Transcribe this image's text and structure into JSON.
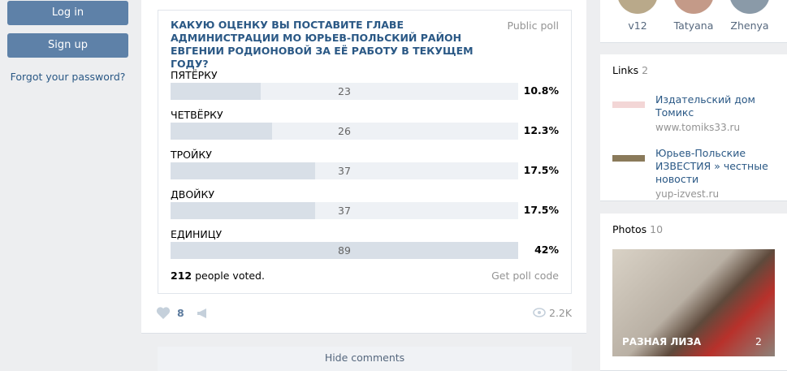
{
  "auth": {
    "login": "Log in",
    "signup": "Sign up",
    "forgot": "Forgot your password?"
  },
  "poll": {
    "question": "КАКУЮ ОЦЕНКУ ВЫ ПОСТАВИТЕ ГЛАВЕ АДМИНИСТРАЦИИ МО ЮРЬЕВ-ПОЛЬСКИЙ РАЙОН ЕВГЕНИИ РОДИОНОВОЙ ЗА ЕЁ РАБОТУ В ТЕКУЩЕМ ГОДУ?",
    "kind": "Public poll",
    "options": [
      {
        "label": "ПЯТЁРКУ",
        "votes": 23,
        "percent": "10.8%"
      },
      {
        "label": "ЧЕТВЁРКУ",
        "votes": 26,
        "percent": "12.3%"
      },
      {
        "label": "ТРОЙКУ",
        "votes": 37,
        "percent": "17.5%"
      },
      {
        "label": "ДВОЙКУ",
        "votes": 37,
        "percent": "17.5%"
      },
      {
        "label": "ЕДИНИЦУ",
        "votes": 89,
        "percent": "42%"
      }
    ],
    "total": 212,
    "voted_text": "people voted.",
    "code": "Get poll code"
  },
  "post": {
    "likes": 8,
    "views": "2.2K",
    "hide": "Hide comments"
  },
  "friends": [
    "v12",
    "Tatyana",
    "Zhenya"
  ],
  "links": {
    "title": "Links",
    "count": 2,
    "items": [
      {
        "title": "Издательский дом Томикс",
        "url": "www.tomiks33.ru"
      },
      {
        "title": "Юрьев-Польские ИЗВЕСТИЯ » честные новости",
        "url": "yup-izvest.ru"
      }
    ]
  },
  "photos": {
    "title": "Photos",
    "count": 10,
    "album": "РАЗНАЯ ЛИЗА",
    "album_count": 2
  }
}
